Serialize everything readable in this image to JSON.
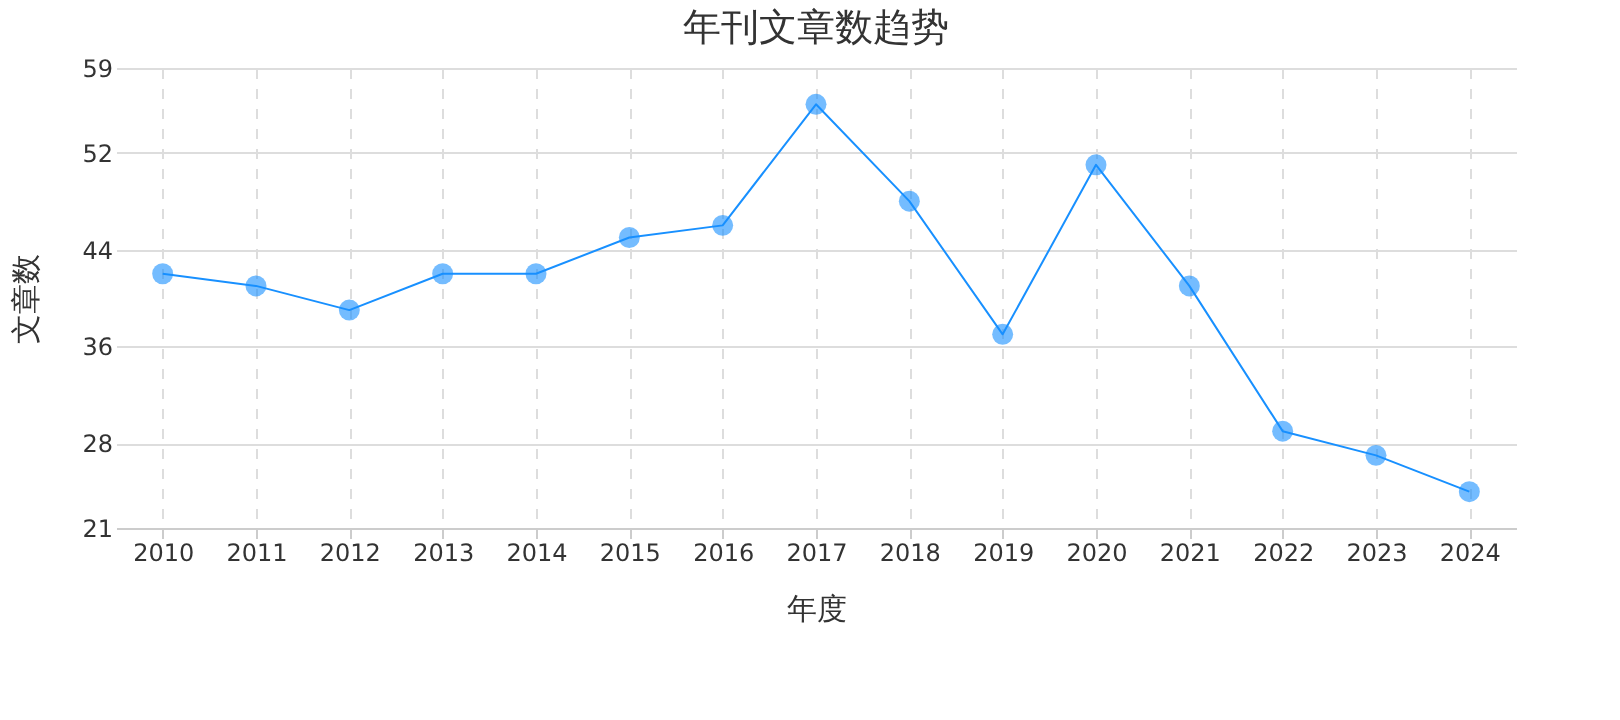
{
  "chart_data": {
    "type": "line",
    "title": "年刊文章数趋势",
    "xlabel": "年度",
    "ylabel": "文章数",
    "categories": [
      "2010",
      "2011",
      "2012",
      "2013",
      "2014",
      "2015",
      "2016",
      "2017",
      "2018",
      "2019",
      "2020",
      "2021",
      "2022",
      "2023",
      "2024"
    ],
    "series": [
      {
        "color": "#1890ff",
        "values": [
          42,
          41,
          39,
          42,
          42,
          45,
          46,
          56,
          48,
          37,
          51,
          41,
          29,
          27,
          24
        ]
      }
    ],
    "ylim": [
      21,
      59
    ],
    "yticks": [
      21,
      28,
      36,
      44,
      52,
      59
    ],
    "grid": true,
    "marker": "circle",
    "line_style": "solid"
  }
}
